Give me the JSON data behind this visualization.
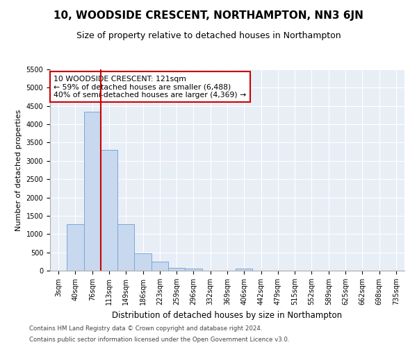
{
  "title": "10, WOODSIDE CRESCENT, NORTHAMPTON, NN3 6JN",
  "subtitle": "Size of property relative to detached houses in Northampton",
  "xlabel": "Distribution of detached houses by size in Northampton",
  "ylabel": "Number of detached properties",
  "footer_line1": "Contains HM Land Registry data © Crown copyright and database right 2024.",
  "footer_line2": "Contains public sector information licensed under the Open Government Licence v3.0.",
  "categories": [
    "3sqm",
    "40sqm",
    "76sqm",
    "113sqm",
    "149sqm",
    "186sqm",
    "223sqm",
    "259sqm",
    "296sqm",
    "332sqm",
    "369sqm",
    "406sqm",
    "442sqm",
    "479sqm",
    "515sqm",
    "552sqm",
    "589sqm",
    "625sqm",
    "662sqm",
    "698sqm",
    "735sqm"
  ],
  "values": [
    0,
    1275,
    4350,
    3300,
    1275,
    480,
    240,
    85,
    50,
    0,
    0,
    50,
    0,
    0,
    0,
    0,
    0,
    0,
    0,
    0,
    0
  ],
  "bar_color": "#c8d8ee",
  "bar_edge_color": "#7aa8d8",
  "red_line_index": 3,
  "annotation_text": "10 WOODSIDE CRESCENT: 121sqm\n← 59% of detached houses are smaller (6,488)\n40% of semi-detached houses are larger (4,369) →",
  "annotation_box_color": "#ffffff",
  "annotation_box_edge": "#cc0000",
  "red_line_color": "#cc0000",
  "ylim": [
    0,
    5500
  ],
  "yticks": [
    0,
    500,
    1000,
    1500,
    2000,
    2500,
    3000,
    3500,
    4000,
    4500,
    5000,
    5500
  ],
  "bg_color": "#e8eef6",
  "fig_bg_color": "#ffffff",
  "title_fontsize": 11,
  "subtitle_fontsize": 9,
  "tick_fontsize": 7,
  "axis_label_fontsize": 8.5,
  "ylabel_fontsize": 8
}
